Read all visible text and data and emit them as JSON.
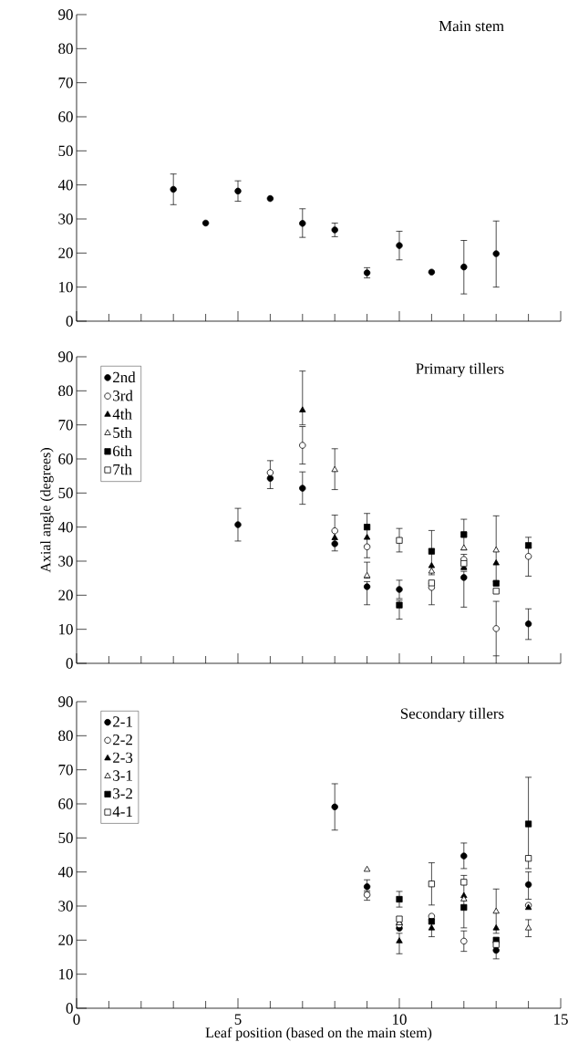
{
  "chart_data": [
    {
      "type": "scatter",
      "title": "Main stem",
      "xlim": [
        0,
        15
      ],
      "ylim": [
        0,
        90
      ],
      "xticks": [
        0,
        {
          "value": 1,
          "label": null
        },
        {
          "value": 2,
          "label": null
        },
        {
          "value": 3,
          "label": null
        },
        {
          "value": 4,
          "label": null
        },
        5,
        {
          "value": 6,
          "label": null
        },
        {
          "value": 7,
          "label": null
        },
        {
          "value": 8,
          "label": null
        },
        {
          "value": 9,
          "label": null
        },
        10,
        {
          "value": 11,
          "label": null
        },
        {
          "value": 12,
          "label": null
        },
        {
          "value": 13,
          "label": null
        },
        {
          "value": 14,
          "label": null
        },
        15
      ],
      "yticks": [
        0,
        10,
        20,
        30,
        40,
        50,
        60,
        70,
        80,
        90
      ],
      "tick_labels": "y",
      "grid": false,
      "legend": false,
      "series": [
        {
          "marker": "circle",
          "color": "#000000",
          "x": [
            3,
            4,
            5,
            6,
            7,
            8,
            9,
            10,
            11,
            12,
            13
          ],
          "values": [
            38.7,
            28.8,
            38.2,
            36,
            28.7,
            26.8,
            14.2,
            22.2,
            14.4,
            15.9,
            19.8
          ],
          "errors": [
            4.5,
            null,
            3,
            null,
            [
              24.6,
              33
            ],
            2,
            1.5,
            4.2,
            null,
            [
              8,
              23.7
            ],
            [
              10,
              29.4
            ]
          ]
        }
      ]
    },
    {
      "type": "scatter",
      "title": "Primary tillers",
      "ylabel": "Axial angle (degrees)",
      "xlim": [
        0,
        15
      ],
      "ylim": [
        0,
        90
      ],
      "xticks": [
        0,
        {
          "value": 1,
          "label": null
        },
        {
          "value": 2,
          "label": null
        },
        {
          "value": 3,
          "label": null
        },
        {
          "value": 4,
          "label": null
        },
        5,
        {
          "value": 6,
          "label": null
        },
        {
          "value": 7,
          "label": null
        },
        {
          "value": 8,
          "label": null
        },
        {
          "value": 9,
          "label": null
        },
        10,
        {
          "value": 11,
          "label": null
        },
        {
          "value": 12,
          "label": null
        },
        {
          "value": 13,
          "label": null
        },
        {
          "value": 14,
          "label": null
        },
        15
      ],
      "yticks": [
        0,
        10,
        20,
        30,
        40,
        50,
        60,
        70,
        80,
        90
      ],
      "tick_labels": "y",
      "grid": false,
      "legend": "top left",
      "series": [
        {
          "name": "2nd",
          "marker": "circle",
          "color": "#000000",
          "x": [
            5,
            6,
            7,
            8,
            9,
            10,
            11,
            12,
            14
          ],
          "values": [
            40.7,
            54.3,
            51.4,
            35.1,
            22.5,
            21.7,
            null,
            25.2,
            11.6
          ],
          "errors": [
            4.8,
            null,
            [
              46.7,
              56.2
            ],
            null,
            [
              17.2,
              24
            ],
            [
              19,
              24.4
            ],
            null,
            [
              16.5,
              27
            ],
            [
              7,
              16
            ]
          ]
        },
        {
          "name": "3rd",
          "marker": "circle",
          "color": "#ffffff",
          "x": [
            6,
            7,
            8,
            9,
            11,
            12,
            13,
            14
          ],
          "values": [
            56,
            64,
            38.9,
            34.2,
            22.3,
            30.5,
            10.2,
            31.4
          ],
          "errors": [
            [
              51.3,
              59.5
            ],
            [
              58.5,
              69.5
            ],
            [
              33,
              43.5
            ],
            null,
            [
              17.2,
              23.5
            ],
            [
              28,
              32
            ],
            [
              2.2,
              18.2
            ],
            [
              25.6,
              37
            ]
          ]
        },
        {
          "name": "4th",
          "marker": "triangle",
          "color": "#000000",
          "x": [
            7,
            8,
            9,
            11,
            12,
            13
          ],
          "values": [
            74.3,
            36.8,
            36.9,
            28.6,
            28,
            29.4
          ],
          "errors": [
            [
              70,
              85.8
            ],
            null,
            [
              31,
              44
            ],
            null,
            null,
            null
          ]
        },
        {
          "name": "5th",
          "marker": "triangle",
          "color": "#ffffff",
          "x": [
            8,
            9,
            11,
            12,
            13
          ],
          "values": [
            56.8,
            25.7,
            27,
            33.8,
            33.2
          ],
          "errors": [
            [
              51,
              63
            ],
            [
              25,
              29.7
            ],
            null,
            null,
            [
              24,
              43.3
            ]
          ]
        },
        {
          "name": "6th",
          "marker": "square",
          "color": "#000000",
          "x": [
            9,
            10,
            11,
            12,
            13,
            14
          ],
          "values": [
            40,
            17.1,
            32.9,
            37.8,
            23.5,
            34.6
          ],
          "errors": [
            null,
            [
              13,
              18.5
            ],
            [
              26,
              39
            ],
            [
              33.3,
              42.3
            ],
            null,
            null
          ]
        },
        {
          "name": "7th",
          "marker": "square",
          "color": "#ffffff",
          "x": [
            10,
            11,
            12,
            13
          ],
          "values": [
            36.1,
            23.6,
            29.3,
            21.2
          ],
          "errors": [
            [
              32.7,
              39.6
            ],
            null,
            null,
            null
          ]
        }
      ]
    },
    {
      "type": "scatter",
      "title": "Secondary tillers",
      "xlabel": "Leaf position (based on the main stem)",
      "xlim": [
        0,
        15
      ],
      "ylim": [
        0,
        90
      ],
      "xticks": [
        0,
        {
          "value": 1,
          "label": null
        },
        {
          "value": 2,
          "label": null
        },
        {
          "value": 3,
          "label": null
        },
        {
          "value": 4,
          "label": null
        },
        5,
        {
          "value": 6,
          "label": null
        },
        {
          "value": 7,
          "label": null
        },
        {
          "value": 8,
          "label": null
        },
        {
          "value": 9,
          "label": null
        },
        10,
        {
          "value": 11,
          "label": null
        },
        {
          "value": 12,
          "label": null
        },
        {
          "value": 13,
          "label": null
        },
        {
          "value": 14,
          "label": null
        },
        15
      ],
      "yticks": [
        0,
        10,
        20,
        30,
        40,
        50,
        60,
        70,
        80,
        90
      ],
      "grid": false,
      "legend": "top left",
      "series": [
        {
          "name": "2-1",
          "marker": "circle",
          "color": "#000000",
          "x": [
            8,
            9,
            10,
            11,
            12,
            13,
            14
          ],
          "values": [
            59.1,
            35.7,
            23.5,
            null,
            44.7,
            17,
            36.3
          ],
          "errors": [
            6.8,
            [
              34.5,
              37.7
            ],
            null,
            null,
            [
              41,
              48.5
            ],
            [
              14.5,
              19.5
            ],
            [
              32,
              40
            ]
          ]
        },
        {
          "name": "2-2",
          "marker": "circle",
          "color": "#ffffff",
          "x": [
            9,
            10,
            11,
            12,
            13,
            14
          ],
          "values": [
            33.3,
            24.5,
            27,
            19.7,
            null,
            30.2
          ],
          "errors": [
            [
              31.7,
              34
            ],
            null,
            null,
            [
              16.7,
              22.7
            ],
            null,
            null
          ]
        },
        {
          "name": "2-3",
          "marker": "triangle",
          "color": "#000000",
          "x": [
            10,
            11,
            12,
            13,
            14
          ],
          "values": [
            19.7,
            23.5,
            33,
            23.5,
            29.5
          ],
          "errors": [
            [
              16,
              22
            ],
            [
              21,
              26
            ],
            null,
            null,
            null
          ]
        },
        {
          "name": "3-1",
          "marker": "triangle",
          "color": "#ffffff",
          "x": [
            9,
            10,
            11,
            12,
            13,
            14
          ],
          "values": [
            40.7,
            25,
            null,
            32,
            28.4,
            23.5
          ],
          "errors": [
            null,
            null,
            null,
            null,
            [
              22,
              35
            ],
            [
              21,
              26
            ]
          ]
        },
        {
          "name": "3-2",
          "marker": "square",
          "color": "#000000",
          "x": [
            10,
            11,
            12,
            13,
            14
          ],
          "values": [
            32,
            25.5,
            29.6,
            20,
            54.1
          ],
          "errors": [
            [
              29.7,
              34.3
            ],
            null,
            [
              23.6,
              39
            ],
            null,
            [
              41,
              67.8
            ]
          ]
        },
        {
          "name": "4-1",
          "marker": "square",
          "color": "#ffffff",
          "x": [
            10,
            11,
            12,
            13,
            14
          ],
          "values": [
            26.2,
            36.5,
            37,
            18.7,
            44
          ],
          "errors": [
            null,
            [
              30.3,
              42.7
            ],
            null,
            null,
            null
          ]
        }
      ]
    }
  ]
}
